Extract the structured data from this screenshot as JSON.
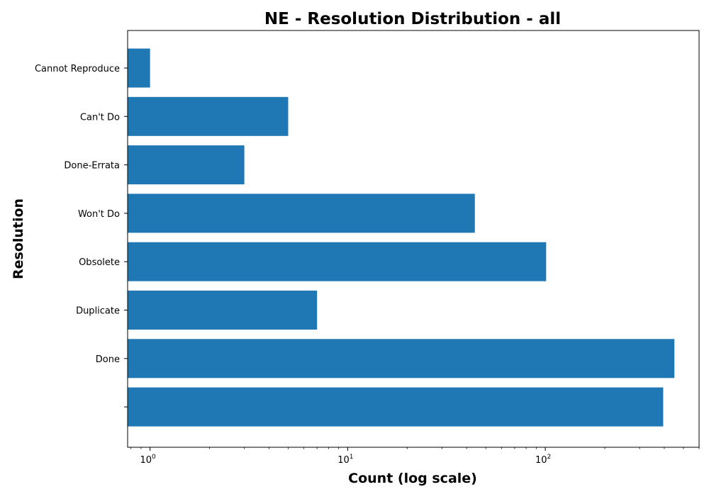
{
  "chart_data": {
    "type": "bar",
    "orientation": "horizontal",
    "title": "NE - Resolution Distribution - all",
    "xlabel": "Count (log scale)",
    "ylabel": "Resolution",
    "x_scale": "log",
    "xlim": [
      0.77,
      600
    ],
    "categories": [
      "Cannot Reproduce",
      "Can't Do",
      "Done-Errata",
      "Won't Do",
      "Obsolete",
      "Duplicate",
      "Done",
      ""
    ],
    "values": [
      1,
      5,
      3,
      44,
      101,
      7,
      450,
      395
    ],
    "x_ticks": [
      {
        "value": 1,
        "base": "10",
        "exp": "0"
      },
      {
        "value": 10,
        "base": "10",
        "exp": "1"
      },
      {
        "value": 100,
        "base": "10",
        "exp": "2"
      }
    ],
    "bar_color": "#1f77b4",
    "grid": false,
    "legend": "none"
  }
}
